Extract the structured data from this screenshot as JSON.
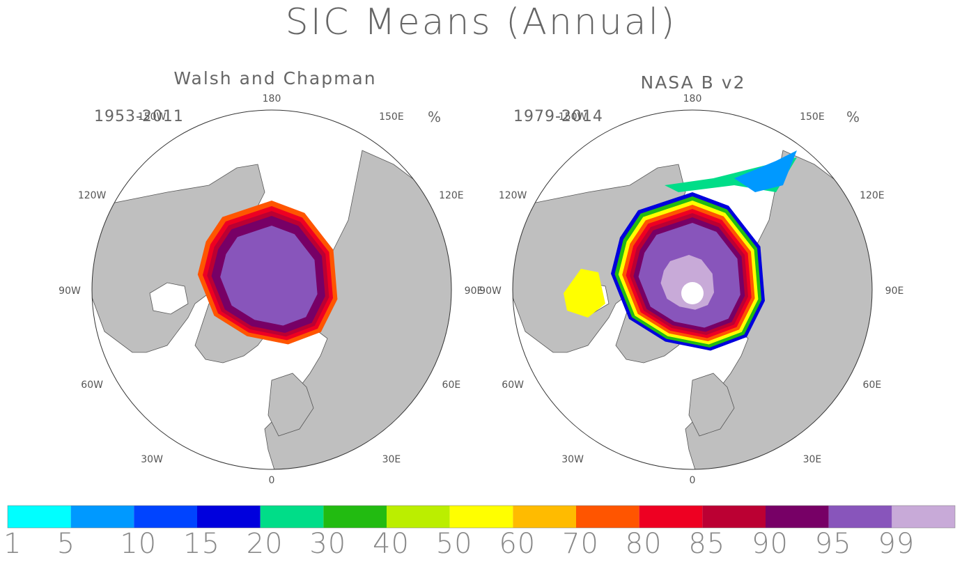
{
  "title": "SIC Means (Annual)",
  "panels": [
    {
      "name": "Walsh and Chapman",
      "period": "1953-2011",
      "unit": "%"
    },
    {
      "name": "NASA B v2",
      "period": "1979-2014",
      "unit": "%"
    }
  ],
  "longitude_labels": {
    "top": "180",
    "bottom": "0",
    "left": "90W",
    "right": "90E",
    "upper_left_1": "150W",
    "upper_left_2": "120W",
    "upper_right_1": "150E",
    "upper_right_2": "120E",
    "lower_left_1": "60W",
    "lower_left_2": "30W",
    "lower_right_1": "60E",
    "lower_right_2": "30E"
  },
  "chart_data": {
    "type": "heatmap",
    "title": "SIC Means (Annual)",
    "subplots": [
      "Walsh and Chapman",
      "NASA B v2"
    ],
    "projection": "north polar stereographic",
    "colorbar": {
      "levels": [
        "1",
        "5",
        "10",
        "15",
        "20",
        "30",
        "40",
        "50",
        "60",
        "70",
        "80",
        "85",
        "90",
        "95",
        "99"
      ],
      "colors": [
        "#00ffff",
        "#0099ff",
        "#0044ff",
        "#0000dd",
        "#00dd88",
        "#22bb11",
        "#bbee00",
        "#ffff00",
        "#ffbb00",
        "#ff5500",
        "#ee0022",
        "#bb0033",
        "#770066",
        "#8855bb",
        "#c8aad8"
      ]
    },
    "land_color": "#bfbfbf"
  }
}
